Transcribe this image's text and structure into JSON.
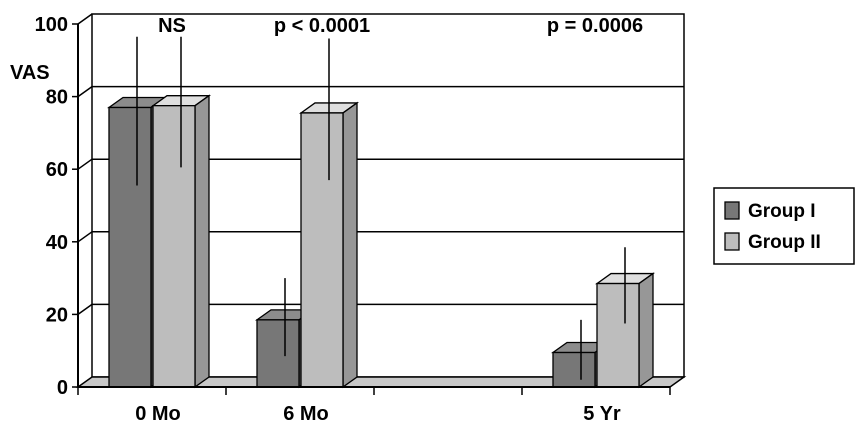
{
  "chart_data": {
    "type": "bar",
    "title": "",
    "xlabel": "",
    "ylabel": "VAS",
    "ylim": [
      0,
      100
    ],
    "yticks": [
      "0",
      "20",
      "40",
      "60",
      "80",
      "100"
    ],
    "grid": true,
    "legend_position": "right",
    "categories": [
      "0 Mo",
      "6 Mo",
      "5 Yr"
    ],
    "annotations": [
      "NS",
      "p < 0.0001",
      "p = 0.0006"
    ],
    "series": [
      {
        "name": "Group I",
        "color": "#777777",
        "values": [
          77,
          18.5,
          9.5
        ],
        "error_low": [
          55.5,
          8.5,
          2
        ],
        "error_high": [
          96.5,
          30,
          18.5
        ]
      },
      {
        "name": "Group II",
        "color": "#bdbdbd",
        "values": [
          77.5,
          75.5,
          28.5
        ],
        "error_low": [
          60.5,
          57,
          17.5
        ],
        "error_high": [
          96.5,
          96,
          38.5
        ]
      }
    ]
  }
}
